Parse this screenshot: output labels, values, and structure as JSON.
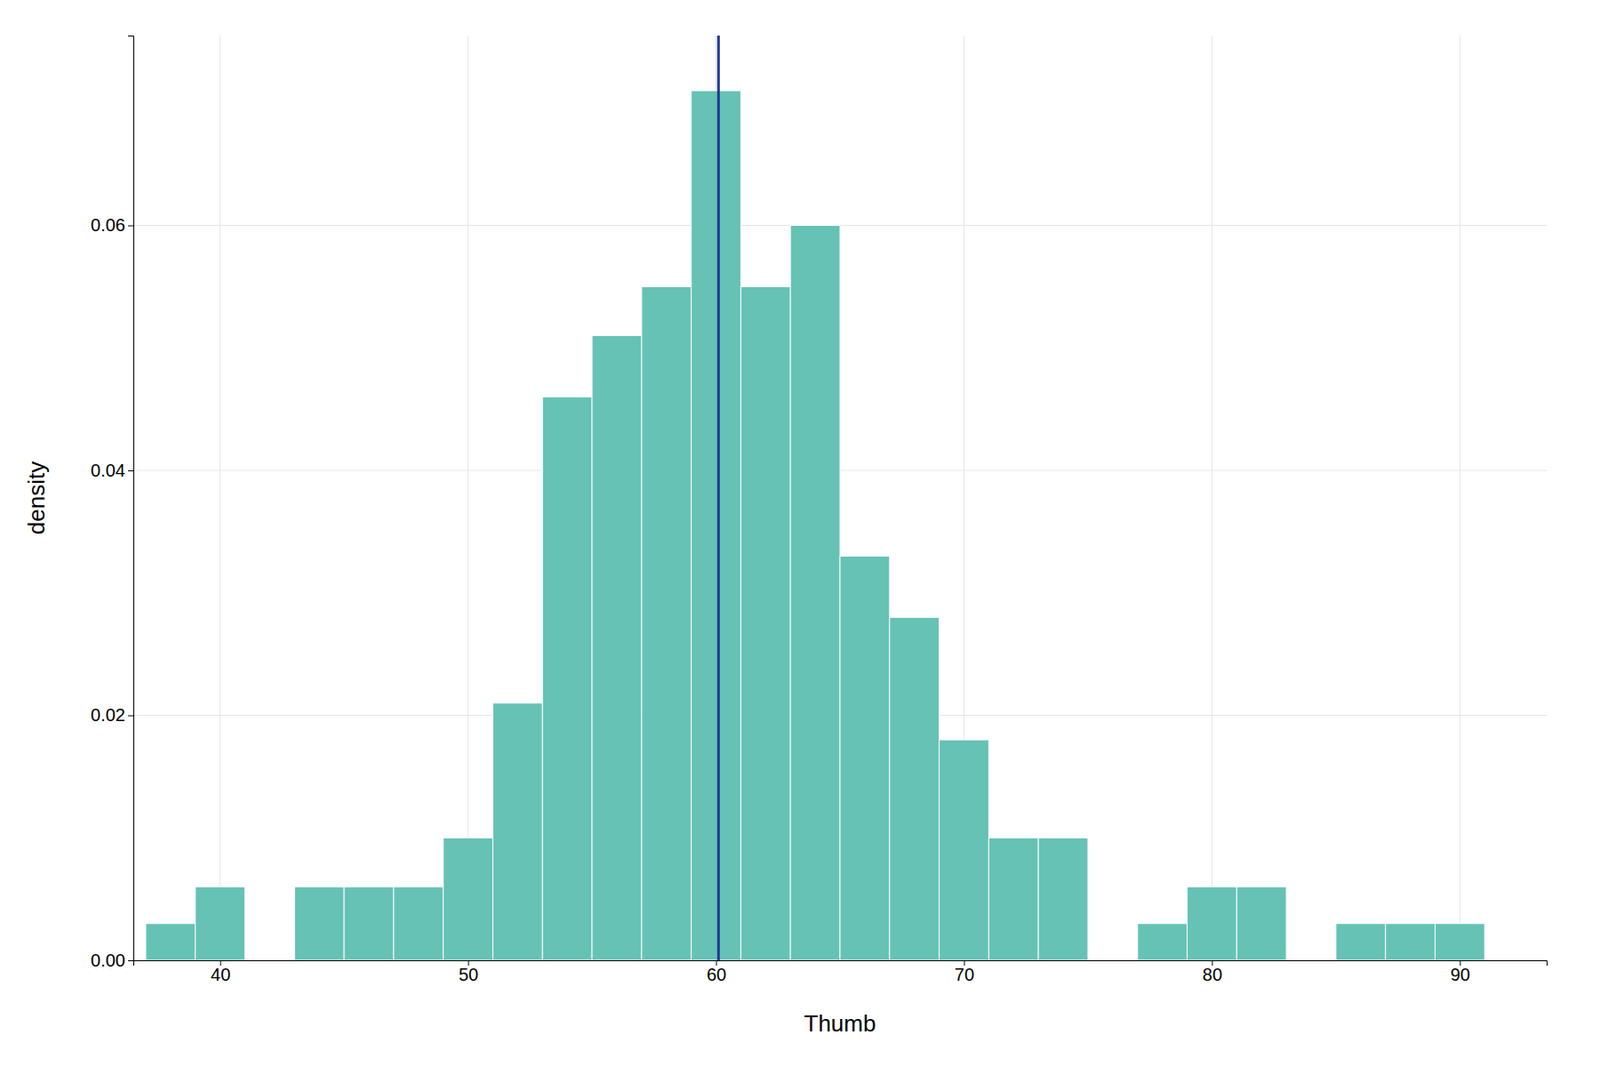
{
  "chart_data": {
    "type": "histogram",
    "xlabel": "Thumb",
    "ylabel": "density",
    "bins": [
      37,
      39,
      41,
      43,
      45,
      47,
      49,
      51,
      53,
      55,
      57,
      59,
      61,
      63,
      65,
      67,
      69,
      71,
      73,
      75,
      77,
      79,
      81,
      83,
      85,
      87,
      89,
      91,
      93
    ],
    "values": [
      0.003,
      0.006,
      0.0,
      0.006,
      0.006,
      0.006,
      0.01,
      0.021,
      0.046,
      0.051,
      0.055,
      0.071,
      0.055,
      0.06,
      0.033,
      0.028,
      0.018,
      0.01,
      0.01,
      0.0,
      0.003,
      0.006,
      0.006,
      0.0,
      0.003,
      0.003,
      0.003,
      0.0
    ],
    "color": "#66c2b5",
    "mean": {
      "value": 60.1,
      "color": "#1f3a93"
    },
    "xlim": [
      36.5,
      93.5
    ],
    "ylim": [
      0,
      0.0755
    ],
    "xticks": [
      40,
      50,
      60,
      70,
      80,
      90
    ],
    "yticks": [
      {
        "value": 0,
        "label": "0.00"
      },
      0.02,
      0.04,
      0.06
    ],
    "grid": true
  }
}
